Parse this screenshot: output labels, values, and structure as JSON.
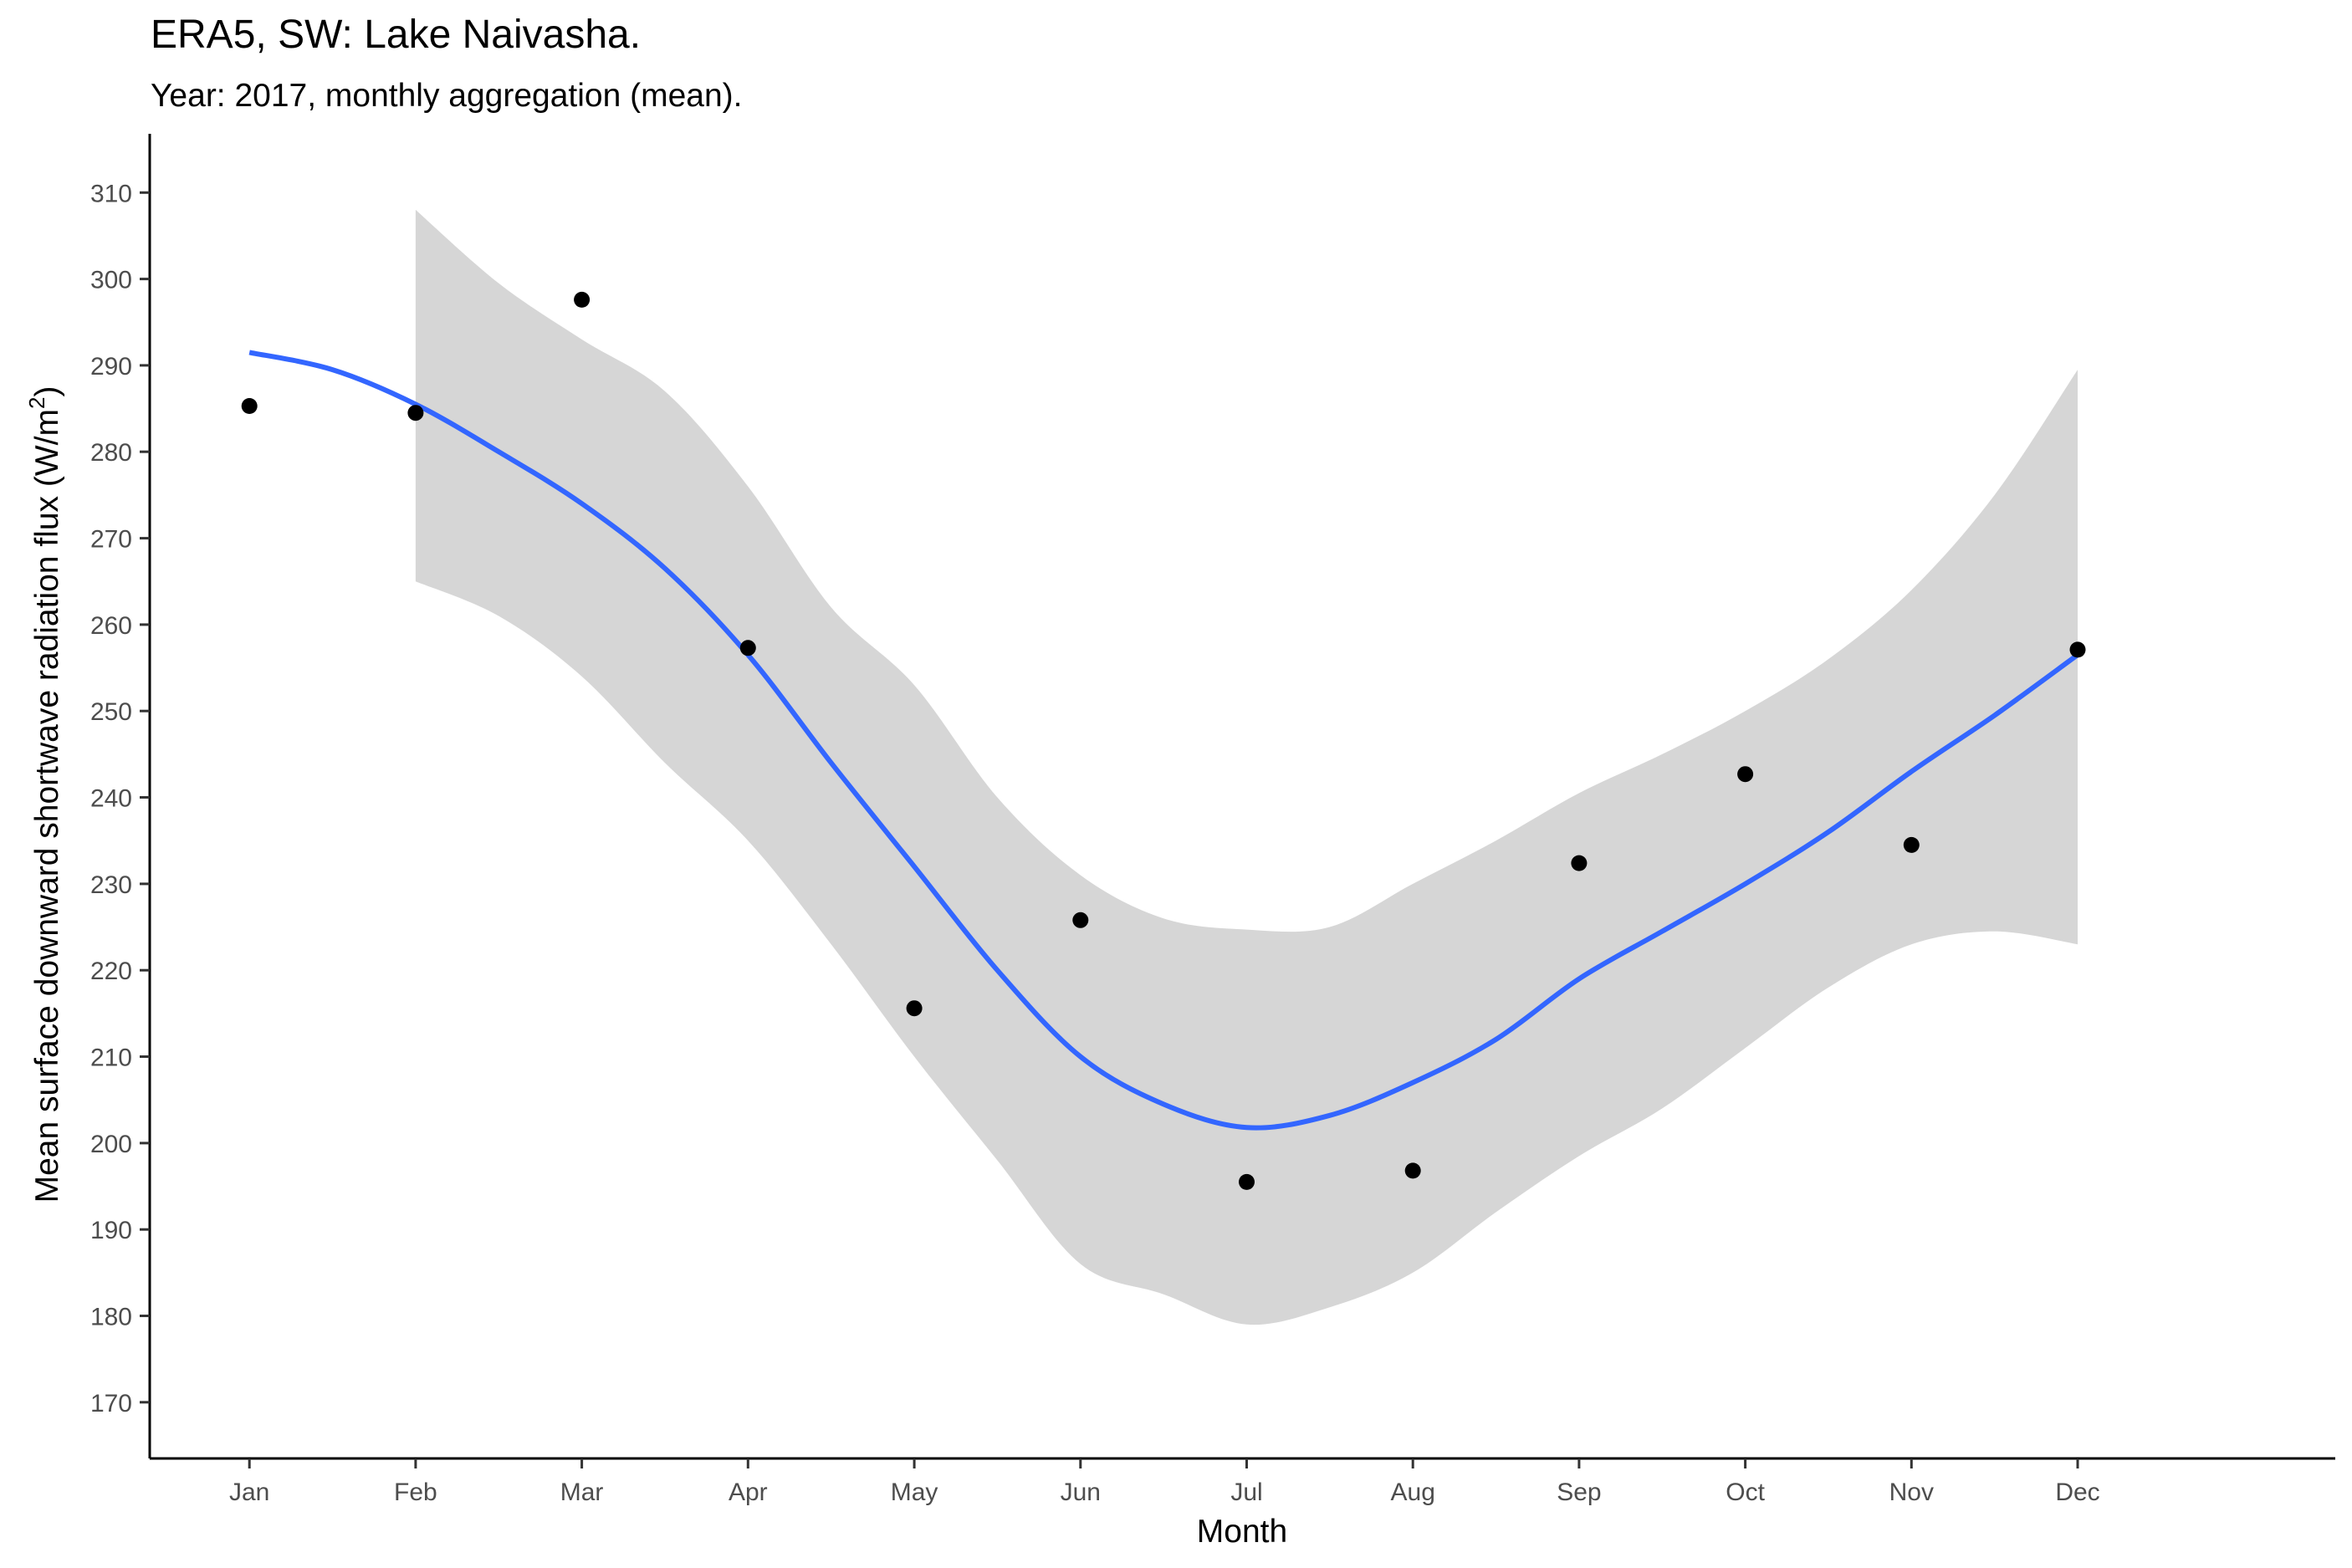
{
  "chart_data": {
    "type": "scatter",
    "title": "ERA5, SW: Lake Naivasha.",
    "subtitle": "Year: 2017, monthly aggregation (mean).",
    "xlabel": "Month",
    "ylabel": "Mean surface downward shortwave radiation flux (W/m",
    "ylabel_superscript": "2",
    "ylabel_suffix": ")",
    "categories": [
      "Jan",
      "Feb",
      "Mar",
      "Apr",
      "May",
      "Jun",
      "Jul",
      "Aug",
      "Sep",
      "Oct",
      "Nov",
      "Dec"
    ],
    "yticks": [
      170,
      180,
      190,
      200,
      210,
      220,
      230,
      240,
      250,
      260,
      270,
      280,
      290,
      300,
      310
    ],
    "ylim": [
      163.5,
      316.8
    ],
    "xlim": [
      0.4,
      13.55
    ],
    "grid": false,
    "points": {
      "name": "",
      "values": [
        285.3,
        284.5,
        297.6,
        257.3,
        215.6,
        225.8,
        195.5,
        196.8,
        232.4,
        242.7,
        234.5,
        257.1
      ],
      "color": "#000000"
    },
    "smooth": {
      "name": "",
      "color": "#3366ff",
      "x": [
        1,
        1.5,
        2,
        2.5,
        3,
        3.5,
        4,
        4.5,
        5,
        5.5,
        6,
        6.5,
        7,
        7.5,
        8,
        8.5,
        9,
        9.5,
        10,
        10.5,
        11,
        11.5,
        12
      ],
      "y": [
        291.5,
        289.5,
        285.5,
        280.0,
        274.0,
        266.5,
        256.5,
        244.0,
        232.0,
        220.0,
        210.0,
        204.5,
        201.8,
        203.2,
        207.0,
        212.0,
        219.0,
        224.5,
        230.0,
        236.0,
        243.0,
        249.5,
        256.5
      ]
    },
    "confidence_band": {
      "color": "#d6d6d6",
      "x": [
        2,
        2.5,
        3,
        3.5,
        4,
        4.5,
        5,
        5.5,
        6,
        6.5,
        7,
        7.5,
        8,
        8.5,
        9,
        9.5,
        10,
        10.5,
        11,
        11.5,
        12
      ],
      "upper": [
        308.0,
        299.5,
        293.0,
        287.0,
        276.0,
        262.0,
        253.0,
        240.0,
        231.0,
        226.0,
        224.7,
        225.0,
        230.0,
        235.0,
        240.5,
        245.0,
        250.0,
        256.0,
        264.0,
        275.0,
        289.5
      ],
      "lower": [
        265.0,
        261.0,
        254.0,
        244.0,
        235.0,
        223.0,
        210.0,
        198.0,
        186.0,
        182.5,
        179.0,
        181.0,
        185.0,
        192.0,
        198.5,
        204.0,
        211.0,
        218.0,
        223.0,
        224.5,
        223.0
      ]
    }
  }
}
